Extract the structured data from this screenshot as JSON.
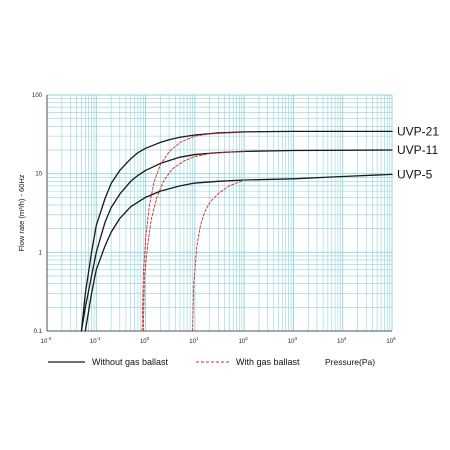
{
  "chart_data": {
    "type": "line",
    "title": "",
    "xlabel": "Pressure(Pa)",
    "ylabel": "Flow rate (m³/h) - 60Hz",
    "x_scale": "log",
    "y_scale": "log",
    "xlim": [
      0.01,
      100000
    ],
    "ylim": [
      0.1,
      100
    ],
    "grid": true,
    "x_ticks": [
      {
        "base": "10",
        "exp": "-2"
      },
      {
        "base": "10",
        "exp": "-1"
      },
      {
        "base": "10",
        "exp": "0"
      },
      {
        "base": "10",
        "exp": "1"
      },
      {
        "base": "10",
        "exp": "2"
      },
      {
        "base": "10",
        "exp": "3"
      },
      {
        "base": "10",
        "exp": "4"
      },
      {
        "base": "10",
        "exp": "5"
      }
    ],
    "y_ticks": [
      "100",
      "10",
      "1",
      "0.1"
    ],
    "legend": [
      {
        "label": "Without gas ballast",
        "style": "solid",
        "color": "#1a1a1a"
      },
      {
        "label": "With gas ballast",
        "style": "dashed",
        "color": "#d9282f"
      }
    ],
    "colors": {
      "grid": "#8fd3dc",
      "solid": "#1a1a1a",
      "dashed": "#d9282f"
    },
    "series": [
      {
        "name": "UVP-21",
        "style": "solid",
        "x": [
          0.05,
          0.06,
          0.08,
          0.1,
          0.15,
          0.2,
          0.3,
          0.5,
          0.7,
          1,
          2,
          3,
          5,
          10,
          30,
          100,
          1000,
          100000
        ],
        "y": [
          0.1,
          0.3,
          1,
          2.2,
          4.8,
          7.5,
          11,
          15.5,
          18.5,
          21,
          25,
          27,
          29,
          31,
          33,
          34,
          34.5,
          34.5
        ]
      },
      {
        "name": "UVP-11",
        "style": "solid",
        "x": [
          0.05,
          0.06,
          0.08,
          0.1,
          0.15,
          0.2,
          0.3,
          0.5,
          0.7,
          1,
          2,
          5,
          10,
          30,
          100,
          1000,
          100000
        ],
        "y": [
          0.1,
          0.2,
          0.5,
          1,
          2.4,
          3.7,
          5.5,
          8,
          9.5,
          11,
          13.5,
          16.2,
          17.5,
          18.5,
          19.2,
          19.7,
          20
        ]
      },
      {
        "name": "UVP-5",
        "style": "solid",
        "x": [
          0.06,
          0.08,
          0.1,
          0.15,
          0.2,
          0.3,
          0.5,
          1,
          2,
          5,
          10,
          30,
          100,
          1000,
          10000,
          100000
        ],
        "y": [
          0.1,
          0.3,
          0.6,
          1.2,
          1.8,
          2.7,
          3.8,
          5,
          6,
          7,
          7.6,
          8,
          8.3,
          8.6,
          9.2,
          9.8
        ]
      },
      {
        "name": "UVP-21 (gas ballast)",
        "style": "dashed",
        "x": [
          0.85,
          0.9,
          1,
          1.2,
          1.5,
          2,
          3,
          5,
          10,
          20,
          50,
          100
        ],
        "y": [
          0.1,
          0.5,
          1.5,
          4,
          8,
          13,
          19,
          25,
          30,
          32,
          33,
          33.5
        ]
      },
      {
        "name": "UVP-11 (gas ballast)",
        "style": "dashed",
        "x": [
          0.9,
          0.95,
          1.1,
          1.3,
          1.7,
          2.3,
          3.5,
          6,
          10,
          20,
          50,
          100
        ],
        "y": [
          0.1,
          0.5,
          1.2,
          2.6,
          5,
          8,
          11.5,
          14.5,
          16.5,
          18,
          18.8,
          19
        ]
      },
      {
        "name": "UVP-5 (gas ballast)",
        "style": "dashed",
        "x": [
          9,
          9.5,
          11,
          13,
          16,
          20,
          30,
          50,
          100
        ],
        "y": [
          0.1,
          0.4,
          1.2,
          2.2,
          3.3,
          4.3,
          5.6,
          7,
          8.3
        ]
      }
    ],
    "series_labels": [
      "UVP-21",
      "UVP-11",
      "UVP-5"
    ]
  }
}
